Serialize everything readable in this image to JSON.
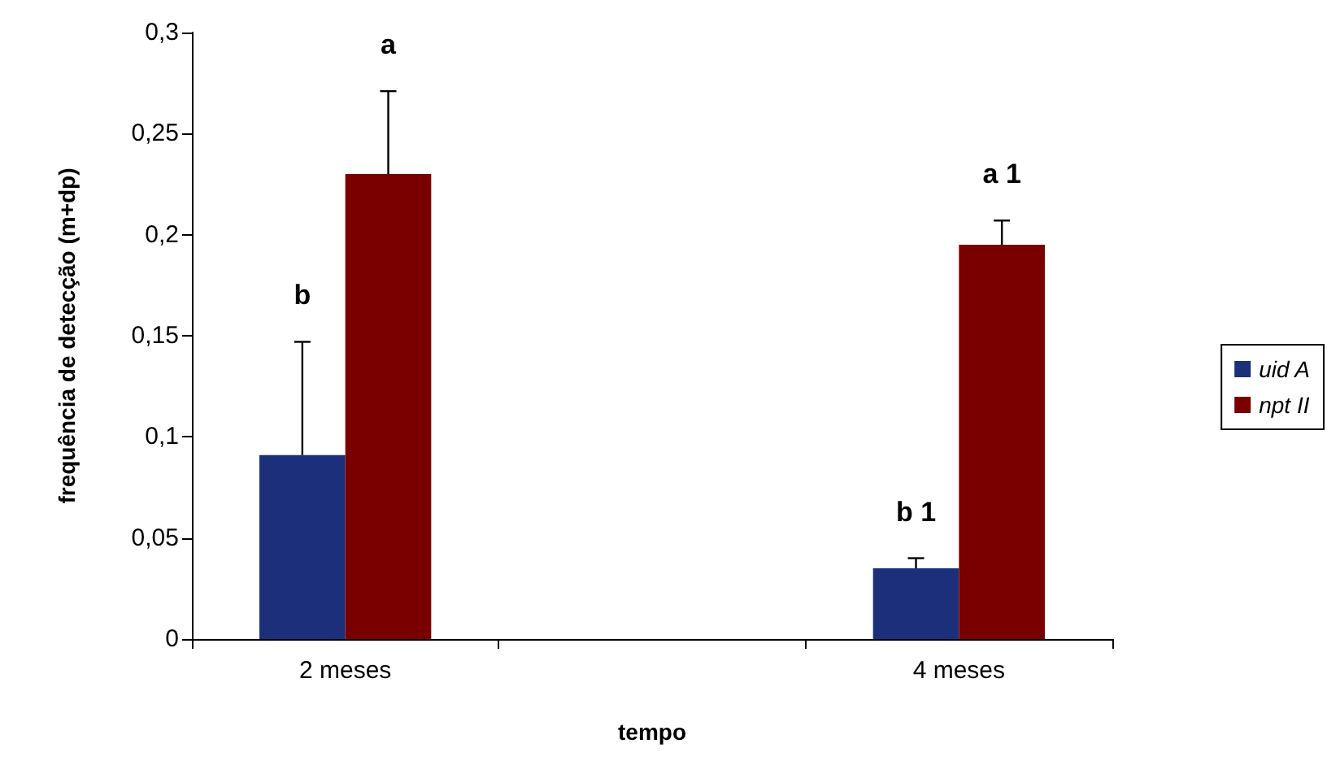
{
  "chart_data": {
    "type": "bar",
    "categories": [
      "2 meses",
      null,
      "4 meses"
    ],
    "xlabel": "tempo",
    "ylabel": "frequência de detecção (m+dp)",
    "series": [
      {
        "name": "uid A",
        "color": "#1b2f7a",
        "values": [
          0.091,
          null,
          0.035
        ],
        "errors": [
          [
            0.091,
            0.147
          ],
          null,
          [
            0.035,
            0.04
          ]
        ]
      },
      {
        "name": "npt II",
        "color": "#7a0000",
        "values": [
          0.23,
          null,
          0.195
        ],
        "errors": [
          [
            0.23,
            0.271
          ],
          null,
          [
            0.195,
            0.207
          ]
        ]
      }
    ],
    "annotations": [
      "b",
      "a",
      "b 1",
      "a 1"
    ],
    "ylim": [
      0,
      0.3
    ],
    "yticks": [
      {
        "value": 0,
        "label": "0"
      },
      {
        "value": 0.05,
        "label": "0,05"
      },
      {
        "value": 0.1,
        "label": "0,1"
      },
      {
        "value": 0.15,
        "label": "0,15"
      },
      {
        "value": 0.2,
        "label": "0,2"
      },
      {
        "value": 0.25,
        "label": "0,25"
      },
      {
        "value": 0.3,
        "label": "0,3"
      }
    ],
    "grid": false,
    "legend": "right"
  }
}
